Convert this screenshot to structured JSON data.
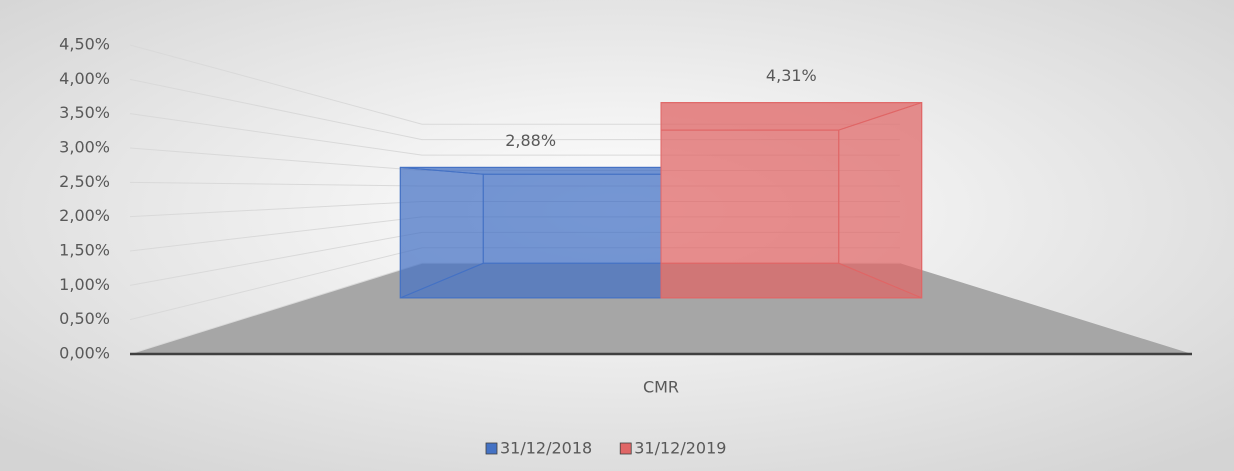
{
  "chart_data": {
    "type": "bar3d",
    "categories": [
      "CMR"
    ],
    "series": [
      {
        "name": "31/12/2018",
        "color": "#4472c4",
        "values": [
          2.88
        ],
        "value_labels": [
          "2,88%"
        ]
      },
      {
        "name": "31/12/2019",
        "color": "#e06666",
        "values": [
          4.31
        ],
        "value_labels": [
          "4,31%"
        ]
      }
    ],
    "ylim": [
      0,
      4.5
    ],
    "yticks": [
      {
        "value": 0,
        "label": "0,00%"
      },
      {
        "value": 0.5,
        "label": "0,50%"
      },
      {
        "value": 1,
        "label": "1,00%"
      },
      {
        "value": 1.5,
        "label": "1,50%"
      },
      {
        "value": 2,
        "label": "2,00%"
      },
      {
        "value": 2.5,
        "label": "2,50%"
      },
      {
        "value": 3,
        "label": "3,00%"
      },
      {
        "value": 3.5,
        "label": "3,50%"
      },
      {
        "value": 4,
        "label": "4,00%"
      },
      {
        "value": 4.5,
        "label": "4,50%"
      }
    ],
    "grid": true,
    "legend": "bottom"
  }
}
